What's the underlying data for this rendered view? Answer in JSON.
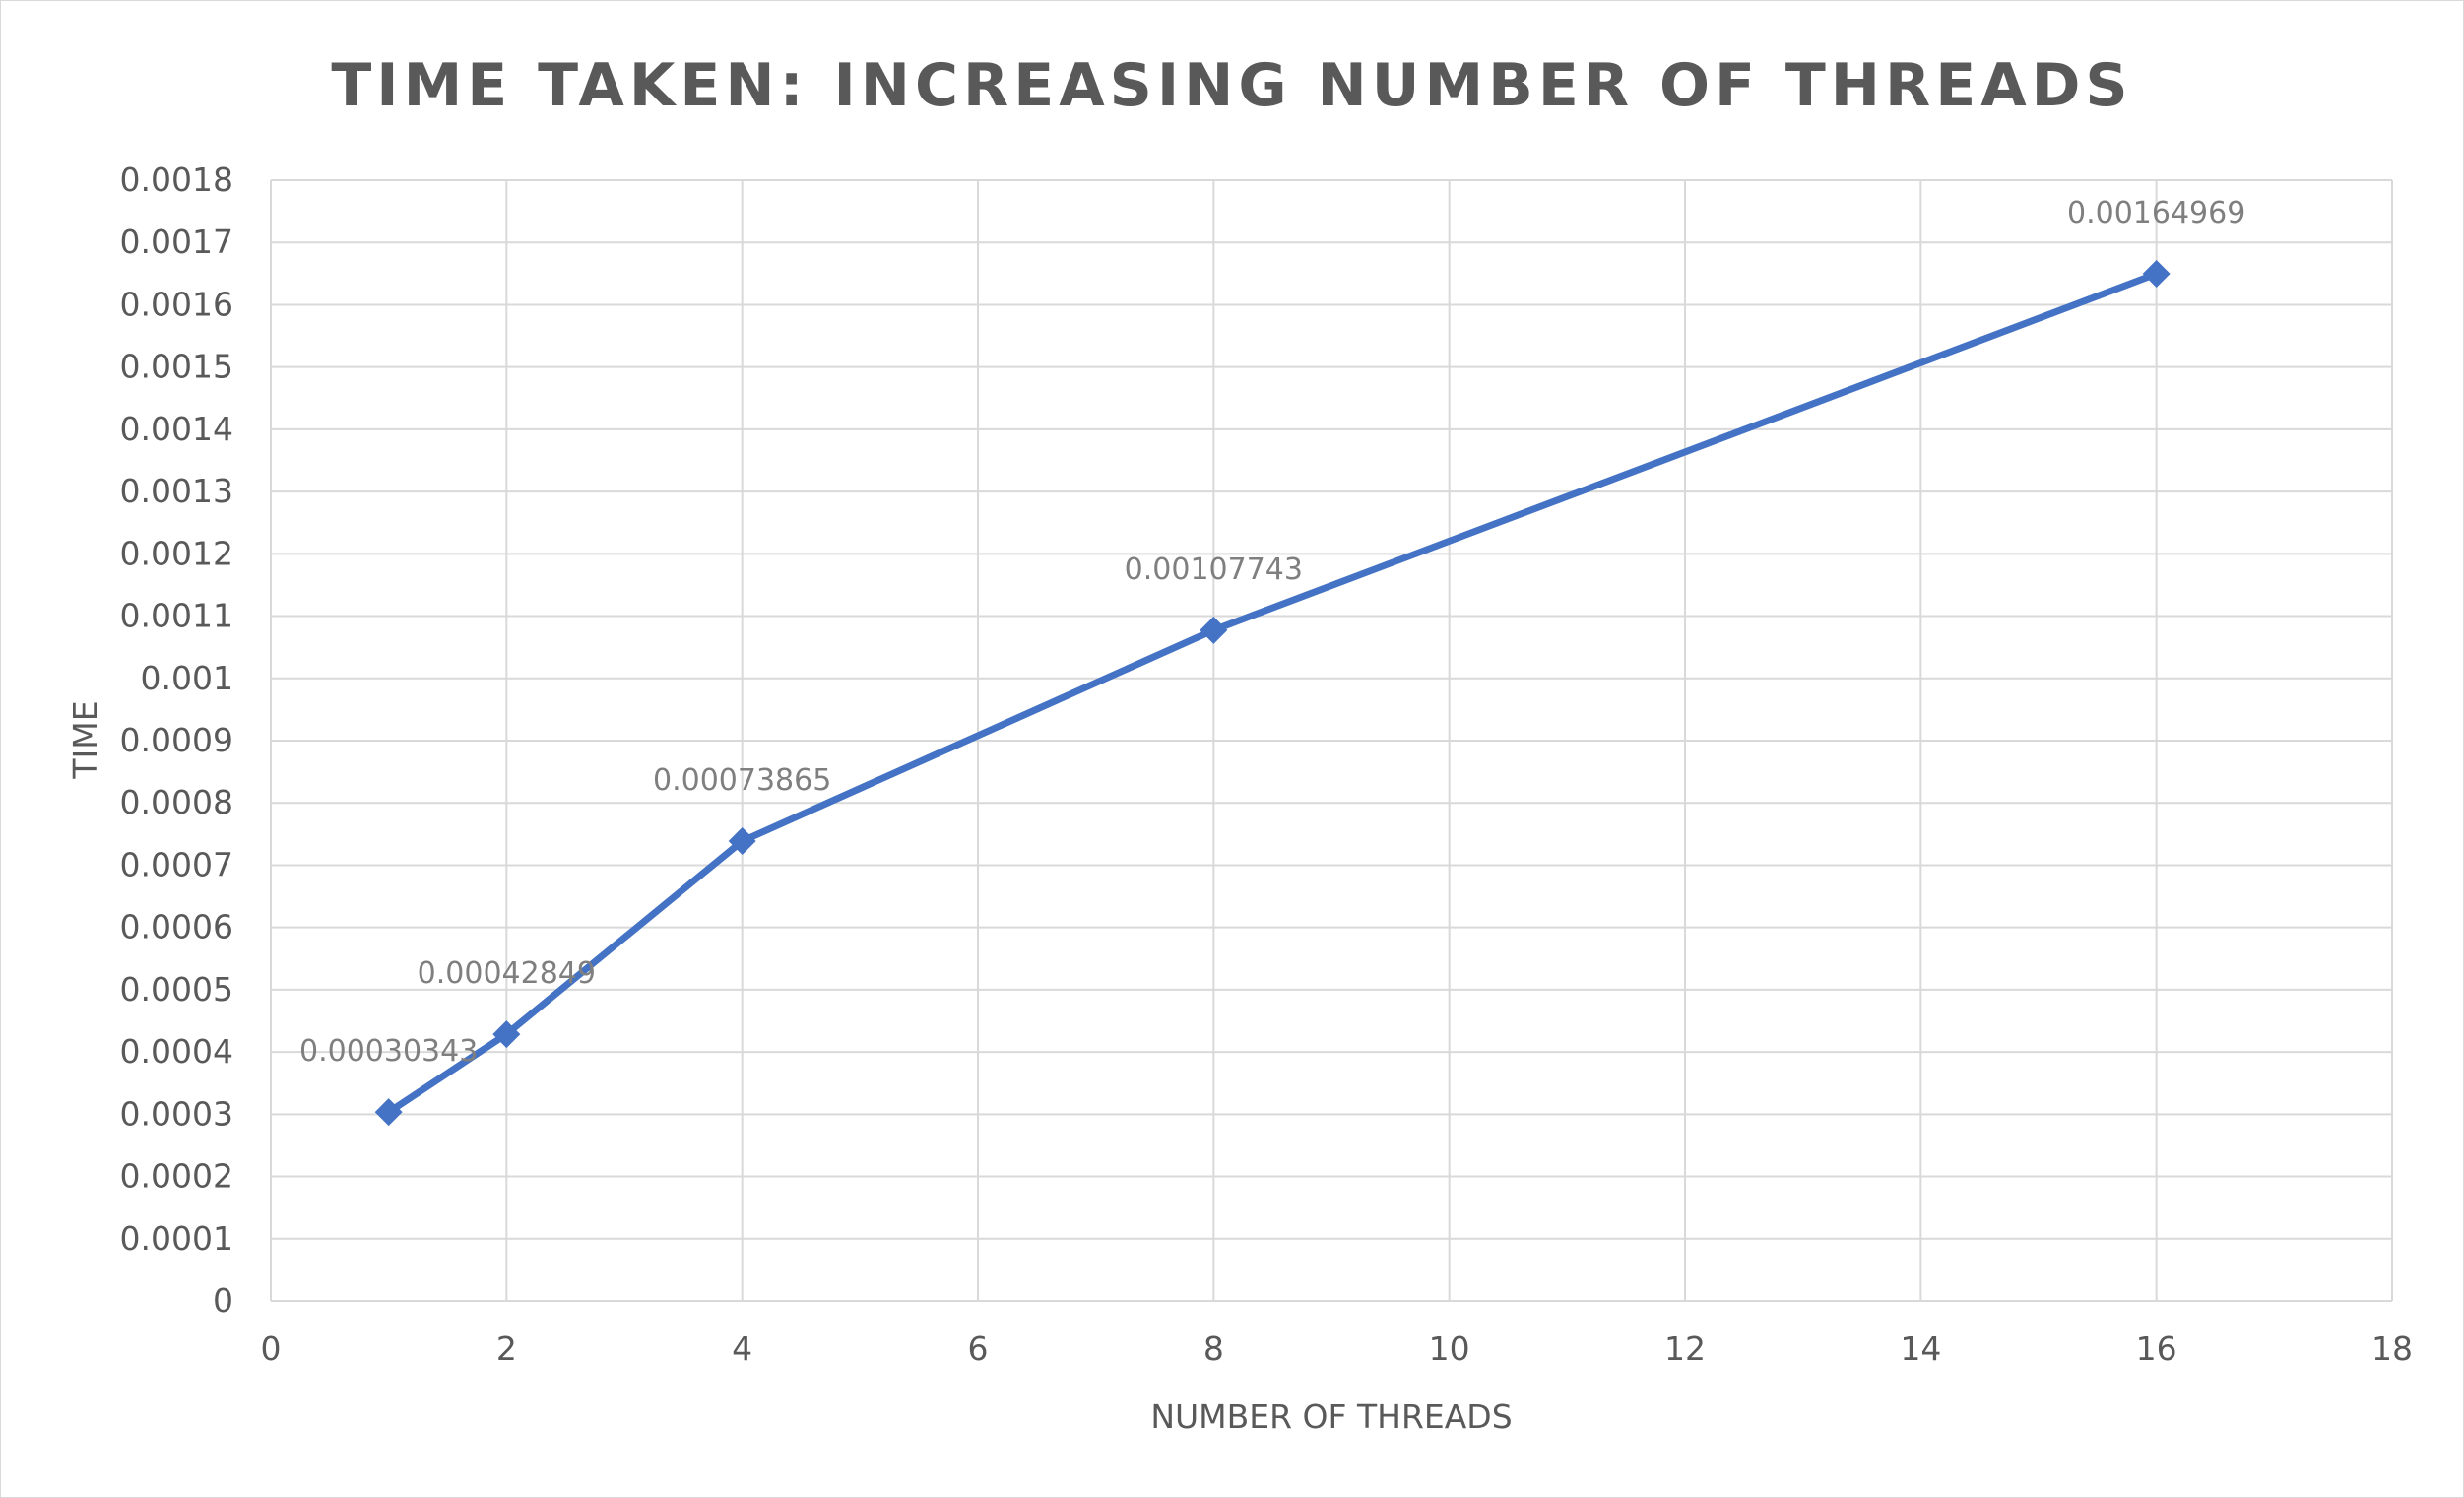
{
  "chart_data": {
    "type": "scatter",
    "title": "TIME TAKEN: INCREASING NUMBER OF THREADS",
    "xlabel": "NUMBER OF THREADS",
    "ylabel": "TIME",
    "xlim": [
      0,
      18
    ],
    "ylim": [
      0,
      0.0018
    ],
    "x_ticks": [
      0,
      2,
      4,
      6,
      8,
      10,
      12,
      14,
      16,
      18
    ],
    "x_tick_labels": [
      "0",
      "2",
      "4",
      "6",
      "8",
      "10",
      "12",
      "14",
      "16",
      "18"
    ],
    "y_ticks": [
      0,
      0.0001,
      0.0002,
      0.0003,
      0.0004,
      0.0005,
      0.0006,
      0.0007,
      0.0008,
      0.0009,
      0.001,
      0.0011,
      0.0012,
      0.0013,
      0.0014,
      0.0015,
      0.0016,
      0.0017,
      0.0018
    ],
    "y_tick_labels": [
      "0",
      "0.0001",
      "0.0002",
      "0.0003",
      "0.0004",
      "0.0005",
      "0.0006",
      "0.0007",
      "0.0008",
      "0.0009",
      "0.001",
      "0.0011",
      "0.0012",
      "0.0013",
      "0.0014",
      "0.0015",
      "0.0016",
      "0.0017",
      "0.0018"
    ],
    "grid": true,
    "line_style": "straight lines with diamond markers",
    "legend": "none",
    "series": [
      {
        "name": "Time",
        "color": "#4472C4",
        "x": [
          1,
          2,
          4,
          8,
          16
        ],
        "y": [
          0.00030343,
          0.00042849,
          0.00073865,
          0.00107743,
          0.00164969
        ],
        "data_labels": [
          "0.00030343",
          "0.00042849",
          "0.00073865",
          "0.00107743",
          "0.00164969"
        ]
      }
    ],
    "colors": {
      "series": "#4472C4",
      "grid": "#d9d9d9",
      "text": "#595959",
      "data_label": "#7f7f7f"
    }
  }
}
